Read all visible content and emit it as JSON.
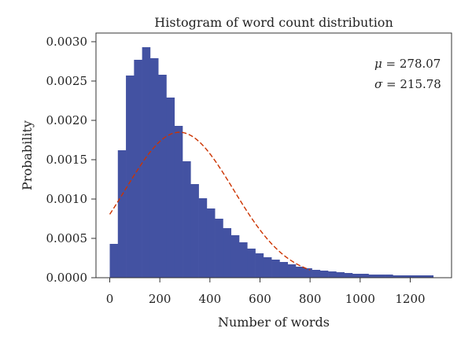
{
  "chart_data": {
    "type": "bar",
    "title": "Histogram of word count distribution",
    "xlabel": "Number of words",
    "ylabel": "Probability",
    "xlim": [
      -55,
      1365
    ],
    "ylim": [
      0,
      0.00311
    ],
    "x_ticks": [
      0,
      200,
      400,
      600,
      800,
      1000,
      1200
    ],
    "x_tick_labels": [
      "0",
      "200",
      "400",
      "600",
      "800",
      "1000",
      "1200"
    ],
    "y_ticks": [
      0,
      0.0005,
      0.001,
      0.0015,
      0.002,
      0.0025,
      0.003
    ],
    "y_tick_labels": [
      "0.0000",
      "0.0005",
      "0.0010",
      "0.0015",
      "0.0020",
      "0.0025",
      "0.0030"
    ],
    "bin_width": 32.3,
    "bins_start": 0,
    "bar_values": [
      0.00043,
      0.00162,
      0.00257,
      0.00277,
      0.00293,
      0.00279,
      0.00258,
      0.00229,
      0.00193,
      0.00148,
      0.00119,
      0.00101,
      0.00088,
      0.00075,
      0.00063,
      0.00054,
      0.00045,
      0.00037,
      0.00031,
      0.00026,
      0.00023,
      0.0002,
      0.00017,
      0.00014,
      0.00012,
      0.0001,
      9e-05,
      8e-05,
      7e-05,
      6e-05,
      5e-05,
      5e-05,
      4e-05,
      4e-05,
      4e-05,
      3e-05,
      3e-05,
      3e-05,
      3e-05,
      3e-05
    ],
    "fit_curve": {
      "type": "normal",
      "mean": 278.07,
      "std": 215.78,
      "x_range": [
        0,
        800
      ],
      "color": "#cc3300",
      "style": "dashed"
    },
    "bar_color": "#4352a2",
    "annotations": [
      {
        "symbol": "μ",
        "text": " = 278.07"
      },
      {
        "symbol": "σ",
        "text": " = 215.78"
      }
    ],
    "grid": false,
    "legend": "none"
  }
}
